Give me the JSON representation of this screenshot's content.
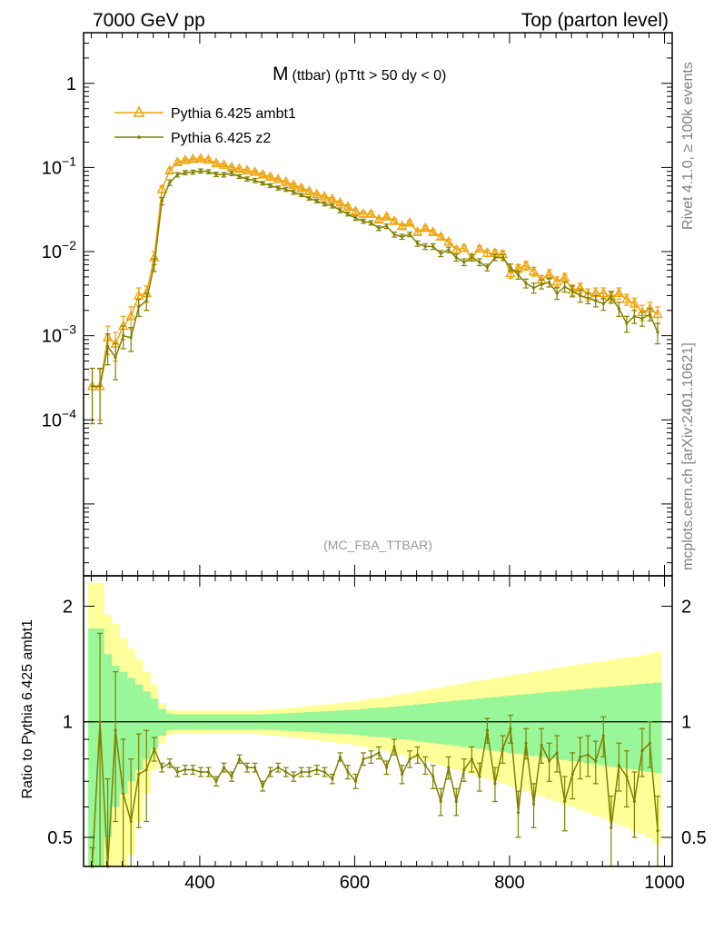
{
  "header": {
    "left": "7000 GeV pp",
    "right": "Top (parton level)"
  },
  "side_labels": {
    "rivet": "Rivet 4.1.0, ≥ 100k events",
    "source": "mcplots.cern.ch [arXiv:2401.10621]"
  },
  "colors": {
    "ambt1": "#f0a30a",
    "z2": "#808000",
    "band_inner": "#99f799",
    "band_outer": "#ffff99",
    "axis": "#000000",
    "watermark": "#999999"
  },
  "chart_data": [
    {
      "type": "line",
      "title_main": "M",
      "title_rest": "(ttbar) (pTtt > 50 dy < 0)",
      "watermark": "(MC_FBA_TTBAR)",
      "xlim": [
        250,
        1010
      ],
      "ylog": true,
      "ylim": [
        1.4e-06,
        4.0
      ],
      "ytick_labels": [
        {
          "value": 1,
          "base": "1",
          "exp": ""
        },
        {
          "value": 0.1,
          "base": "10",
          "exp": "−1"
        },
        {
          "value": 0.01,
          "base": "10",
          "exp": "−2"
        },
        {
          "value": 0.001,
          "base": "10",
          "exp": "−3"
        },
        {
          "value": 0.0001,
          "base": "10",
          "exp": "−4"
        }
      ],
      "legend": [
        "Pythia 6.425 ambt1",
        "Pythia 6.425 z2"
      ],
      "x": [
        261.2,
        271.2,
        281.2,
        291.2,
        301.2,
        311.2,
        321.2,
        331.2,
        341.2,
        351.2,
        361.2,
        371.2,
        381.2,
        391.2,
        401.2,
        411.2,
        421.2,
        431.2,
        441.2,
        451.2,
        461.2,
        471.2,
        481.2,
        491.2,
        501.2,
        511.2,
        521.2,
        531.2,
        541.2,
        551.2,
        561.2,
        571.2,
        581.2,
        591.2,
        601.2,
        611.2,
        621.2,
        631.2,
        641.2,
        651.2,
        661.2,
        671.2,
        681.2,
        691.2,
        701.2,
        711.2,
        721.2,
        731.2,
        741.2,
        751.2,
        761.2,
        771.2,
        781.2,
        791.2,
        801.2,
        811.2,
        821.2,
        831.2,
        841.2,
        851.2,
        861.2,
        871.2,
        881.2,
        891.2,
        901.2,
        911.2,
        921.2,
        931.2,
        941.2,
        951.2,
        961.2,
        971.2,
        981.2,
        991.2
      ],
      "series": [
        {
          "name": "Pythia 6.425 ambt1",
          "values": [
            0.00025,
            0.00025,
            0.00095,
            0.0008,
            0.0013,
            0.0017,
            0.003,
            0.0032,
            0.0085,
            0.055,
            0.092,
            0.115,
            0.122,
            0.125,
            0.127,
            0.123,
            0.112,
            0.107,
            0.1,
            0.096,
            0.092,
            0.088,
            0.082,
            0.077,
            0.072,
            0.067,
            0.062,
            0.057,
            0.052,
            0.048,
            0.045,
            0.042,
            0.038,
            0.034,
            0.03,
            0.028,
            0.028,
            0.024,
            0.026,
            0.023,
            0.02,
            0.022,
            0.017,
            0.019,
            0.017,
            0.015,
            0.013,
            0.0105,
            0.011,
            0.0085,
            0.0108,
            0.0096,
            0.0096,
            0.0093,
            0.0055,
            0.0063,
            0.0068,
            0.0058,
            0.0046,
            0.0054,
            0.0044,
            0.0049,
            0.0035,
            0.0037,
            0.0031,
            0.0032,
            0.0032,
            0.0029,
            0.0032,
            0.0027,
            0.0024,
            0.0019,
            0.0021,
            0.0018
          ],
          "errors": [
            0.00016,
            0.00015,
            0.00035,
            0.0003,
            0.0004,
            0.0005,
            0.0007,
            0.0007,
            0.0015,
            0.005,
            0.006,
            0.006,
            0.006,
            0.006,
            0.006,
            0.006,
            0.006,
            0.005,
            0.005,
            0.005,
            0.004,
            0.004,
            0.004,
            0.004,
            0.003,
            0.003,
            0.003,
            0.003,
            0.003,
            0.002,
            0.002,
            0.002,
            0.002,
            0.002,
            0.002,
            0.002,
            0.002,
            0.0015,
            0.0015,
            0.0015,
            0.0013,
            0.0013,
            0.0012,
            0.0012,
            0.0011,
            0.001,
            0.001,
            0.0009,
            0.0009,
            0.0008,
            0.0009,
            0.0009,
            0.0009,
            0.0009,
            0.0007,
            0.0007,
            0.0008,
            0.0007,
            0.0006,
            0.0007,
            0.0006,
            0.0006,
            0.0005,
            0.0005,
            0.0005,
            0.0005,
            0.0005,
            0.0005,
            0.0005,
            0.0004,
            0.0004,
            0.0004,
            0.0004,
            0.0004
          ]
        },
        {
          "name": "Pythia 6.425 z2",
          "values": [
            0.00025,
            0.00025,
            0.00075,
            0.00055,
            0.001,
            0.00095,
            0.0022,
            0.0026,
            0.007,
            0.04,
            0.066,
            0.082,
            0.087,
            0.088,
            0.091,
            0.089,
            0.083,
            0.082,
            0.085,
            0.078,
            0.073,
            0.07,
            0.065,
            0.061,
            0.057,
            0.055,
            0.051,
            0.047,
            0.043,
            0.04,
            0.037,
            0.035,
            0.031,
            0.028,
            0.025,
            0.023,
            0.022,
            0.019,
            0.02,
            0.016,
            0.015,
            0.016,
            0.0125,
            0.0115,
            0.0115,
            0.0095,
            0.0105,
            0.0085,
            0.0075,
            0.0085,
            0.0075,
            0.0065,
            0.0085,
            0.0085,
            0.0065,
            0.0053,
            0.0042,
            0.0037,
            0.0041,
            0.0043,
            0.0032,
            0.0038,
            0.0034,
            0.003,
            0.0028,
            0.0026,
            0.0024,
            0.0029,
            0.0021,
            0.0014,
            0.0017,
            0.0016,
            0.0018,
            0.0011
          ],
          "errors": [
            0.00016,
            0.00016,
            0.0003,
            0.00025,
            0.0003,
            0.0003,
            0.0005,
            0.0006,
            0.0012,
            0.004,
            0.005,
            0.005,
            0.005,
            0.005,
            0.005,
            0.005,
            0.005,
            0.005,
            0.005,
            0.004,
            0.004,
            0.004,
            0.003,
            0.003,
            0.003,
            0.003,
            0.003,
            0.002,
            0.002,
            0.002,
            0.002,
            0.002,
            0.002,
            0.0015,
            0.0015,
            0.0013,
            0.0013,
            0.0012,
            0.0012,
            0.0011,
            0.001,
            0.001,
            0.0009,
            0.0009,
            0.0009,
            0.0008,
            0.0008,
            0.0008,
            0.0007,
            0.0007,
            0.0007,
            0.0006,
            0.0007,
            0.0007,
            0.0006,
            0.0006,
            0.0005,
            0.0005,
            0.0005,
            0.0005,
            0.0005,
            0.0005,
            0.0005,
            0.0005,
            0.0004,
            0.0004,
            0.0004,
            0.0004,
            0.0004,
            0.0003,
            0.0003,
            0.0003,
            0.0003,
            0.0003
          ]
        }
      ]
    },
    {
      "type": "line",
      "ylabel": "Ratio to Pythia 6.425 ambt1",
      "xlim": [
        250,
        1010
      ],
      "ylog": true,
      "ylim": [
        0.42,
        2.4
      ],
      "xtick_labels": [
        "400",
        "600",
        "800",
        "1000"
      ],
      "ytick_labels": [
        "2",
        "1",
        "0.5"
      ],
      "reference": 1,
      "band_x_edges": [
        256,
        266,
        276,
        286,
        296,
        306,
        316,
        326,
        336,
        346,
        356,
        366,
        376,
        386,
        396,
        406,
        416,
        426,
        436,
        446,
        456,
        466,
        476,
        486,
        496,
        506,
        516,
        526,
        536,
        546,
        556,
        566,
        576,
        586,
        596,
        606,
        616,
        626,
        636,
        646,
        656,
        666,
        676,
        686,
        696,
        706,
        716,
        726,
        736,
        746,
        756,
        766,
        776,
        786,
        796,
        806,
        816,
        826,
        836,
        846,
        856,
        866,
        876,
        886,
        896,
        906,
        916,
        926,
        936,
        946,
        956,
        966,
        976,
        986,
        996
      ],
      "band_inner_halfwidth": [
        0.75,
        0.75,
        0.5,
        0.4,
        0.35,
        0.3,
        0.25,
        0.2,
        0.15,
        0.08,
        0.05,
        0.045,
        0.045,
        0.045,
        0.045,
        0.045,
        0.045,
        0.045,
        0.045,
        0.045,
        0.045,
        0.045,
        0.045,
        0.048,
        0.05,
        0.052,
        0.055,
        0.057,
        0.06,
        0.062,
        0.065,
        0.068,
        0.07,
        0.072,
        0.075,
        0.08,
        0.085,
        0.088,
        0.09,
        0.095,
        0.1,
        0.105,
        0.11,
        0.115,
        0.12,
        0.125,
        0.13,
        0.135,
        0.14,
        0.145,
        0.15,
        0.155,
        0.16,
        0.165,
        0.17,
        0.175,
        0.18,
        0.185,
        0.19,
        0.195,
        0.2,
        0.205,
        0.21,
        0.215,
        0.22,
        0.225,
        0.23,
        0.235,
        0.24,
        0.245,
        0.25,
        0.255,
        0.26,
        0.265
      ],
      "band_outer_halfwidth": [
        1.3,
        1.3,
        0.9,
        0.8,
        0.65,
        0.55,
        0.45,
        0.35,
        0.25,
        0.12,
        0.075,
        0.07,
        0.07,
        0.07,
        0.07,
        0.07,
        0.07,
        0.07,
        0.07,
        0.07,
        0.07,
        0.07,
        0.075,
        0.078,
        0.08,
        0.085,
        0.09,
        0.095,
        0.1,
        0.105,
        0.11,
        0.115,
        0.12,
        0.125,
        0.13,
        0.14,
        0.15,
        0.155,
        0.16,
        0.17,
        0.18,
        0.19,
        0.2,
        0.21,
        0.22,
        0.23,
        0.24,
        0.25,
        0.26,
        0.27,
        0.28,
        0.29,
        0.3,
        0.31,
        0.32,
        0.33,
        0.34,
        0.35,
        0.36,
        0.37,
        0.38,
        0.39,
        0.4,
        0.41,
        0.42,
        0.43,
        0.44,
        0.45,
        0.46,
        0.47,
        0.48,
        0.49,
        0.5,
        0.52
      ],
      "ratio_x": [
        261.2,
        271.2,
        281.2,
        291.2,
        301.2,
        311.2,
        321.2,
        331.2,
        341.2,
        351.2,
        361.2,
        371.2,
        381.2,
        391.2,
        401.2,
        411.2,
        421.2,
        431.2,
        441.2,
        451.2,
        461.2,
        471.2,
        481.2,
        491.2,
        501.2,
        511.2,
        521.2,
        531.2,
        541.2,
        551.2,
        561.2,
        571.2,
        581.2,
        591.2,
        601.2,
        611.2,
        621.2,
        631.2,
        641.2,
        651.2,
        661.2,
        671.2,
        681.2,
        691.2,
        701.2,
        711.2,
        721.2,
        731.2,
        741.2,
        751.2,
        761.2,
        771.2,
        781.2,
        791.2,
        801.2,
        811.2,
        821.2,
        831.2,
        841.2,
        851.2,
        861.2,
        871.2,
        881.2,
        891.2,
        901.2,
        911.2,
        921.2,
        931.2,
        941.2,
        951.2,
        961.2,
        971.2,
        981.2,
        991.2
      ],
      "ratio_values": [
        0.27,
        1.0,
        0.41,
        0.95,
        0.65,
        0.55,
        0.73,
        0.75,
        0.85,
        0.76,
        0.78,
        0.74,
        0.75,
        0.75,
        0.74,
        0.74,
        0.7,
        0.76,
        0.72,
        0.8,
        0.76,
        0.76,
        0.68,
        0.74,
        0.76,
        0.74,
        0.72,
        0.74,
        0.74,
        0.75,
        0.74,
        0.71,
        0.81,
        0.74,
        0.7,
        0.8,
        0.81,
        0.83,
        0.76,
        0.86,
        0.73,
        0.8,
        0.82,
        0.77,
        0.72,
        0.62,
        0.76,
        0.62,
        0.75,
        0.8,
        0.72,
        0.95,
        0.69,
        0.85,
        0.96,
        0.58,
        0.88,
        0.61,
        0.87,
        0.79,
        0.83,
        0.62,
        0.73,
        0.81,
        0.82,
        0.79,
        0.92,
        0.53,
        0.77,
        0.72,
        0.62,
        0.84,
        0.88,
        0.52
      ],
      "ratio_errors": [
        0.2,
        0.7,
        0.3,
        0.4,
        0.25,
        0.25,
        0.2,
        0.2,
        0.06,
        0.02,
        0.02,
        0.02,
        0.02,
        0.02,
        0.02,
        0.02,
        0.02,
        0.02,
        0.02,
        0.02,
        0.02,
        0.02,
        0.02,
        0.02,
        0.02,
        0.02,
        0.02,
        0.02,
        0.02,
        0.02,
        0.02,
        0.02,
        0.02,
        0.03,
        0.03,
        0.03,
        0.03,
        0.03,
        0.03,
        0.04,
        0.04,
        0.04,
        0.04,
        0.04,
        0.05,
        0.05,
        0.05,
        0.05,
        0.05,
        0.06,
        0.06,
        0.07,
        0.07,
        0.07,
        0.08,
        0.08,
        0.08,
        0.08,
        0.09,
        0.09,
        0.09,
        0.1,
        0.1,
        0.1,
        0.1,
        0.1,
        0.11,
        0.11,
        0.11,
        0.12,
        0.12,
        0.12,
        0.12,
        0.12
      ]
    }
  ]
}
